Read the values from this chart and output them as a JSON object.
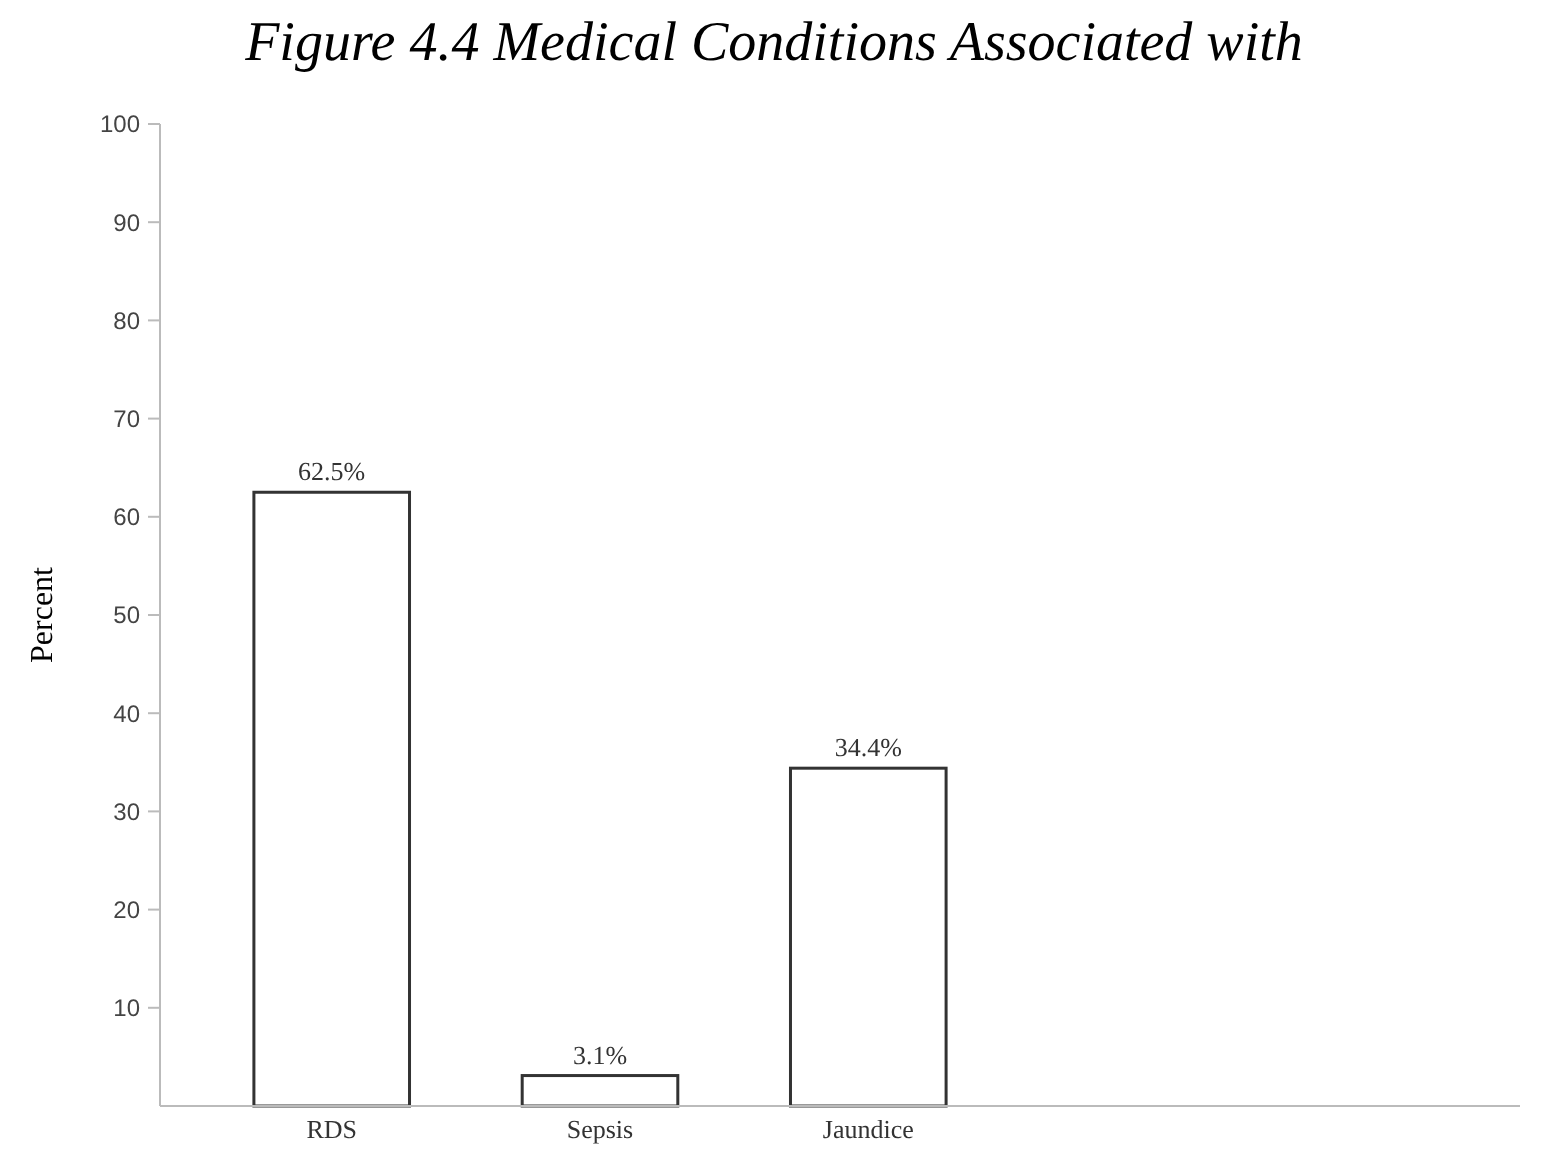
{
  "chart_data": {
    "type": "bar",
    "title": "Figure 4.4 Medical Conditions Associated with",
    "ylabel": "Percent",
    "categories": [
      "RDS",
      "Sepsis",
      "Jaundice"
    ],
    "values": [
      62.5,
      3.1,
      34.4
    ],
    "value_labels": [
      "62.5%",
      "3.1%",
      "34.4%"
    ],
    "color": "#ffffff",
    "ylim": [
      0,
      100
    ],
    "yticks": [
      10,
      20,
      30,
      40,
      50,
      60,
      70,
      80,
      90,
      100
    ]
  }
}
